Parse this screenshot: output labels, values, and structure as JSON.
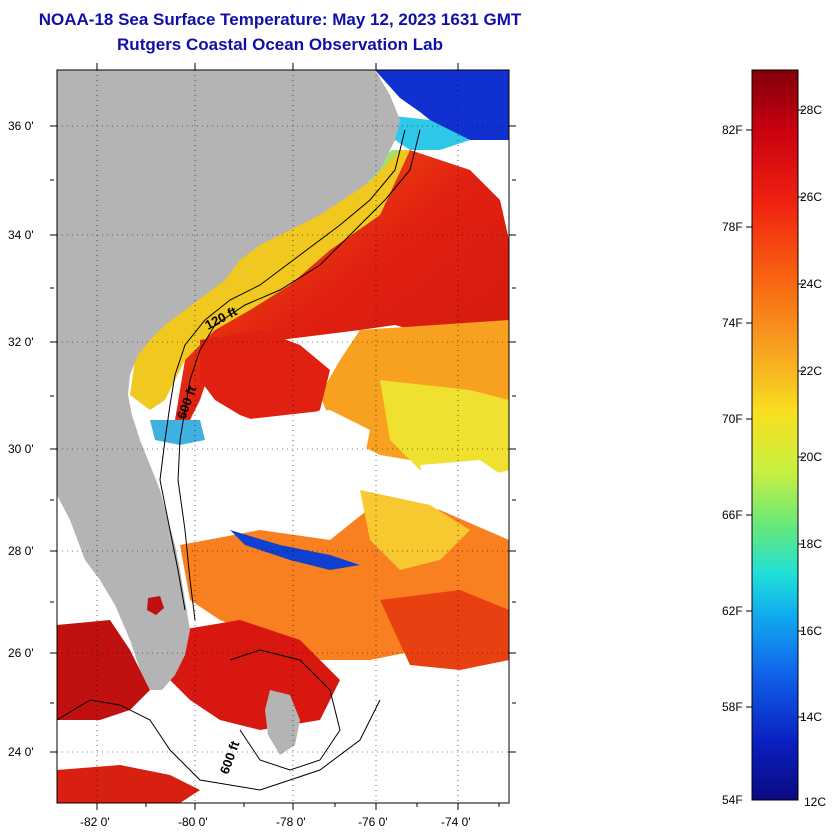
{
  "header": {
    "title": "NOAA-18 Sea Surface Temperature:  May 12, 2023 1631 GMT",
    "subtitle": "Rutgers Coastal Ocean Observation Lab"
  },
  "map": {
    "lat_labels": [
      "36 0'",
      "34 0'",
      "32 0'",
      "30 0'",
      "28 0'",
      "26 0'",
      "24 0'"
    ],
    "lon_labels": [
      "-82 0'",
      "-80 0'",
      "-78 0'",
      "-76 0'",
      "-74 0'"
    ],
    "contour_labels": [
      "120 ft",
      "600 ft",
      "600 ft"
    ],
    "colors": {
      "land": "#b4b4b4",
      "cloud": "#ffffff",
      "warm": "#e02010",
      "hot": "#b01010",
      "orange": "#f08020",
      "yellow": "#f8e020",
      "cool": "#30c0f0",
      "cold": "#1030d0"
    }
  },
  "colorbar": {
    "fahrenheit_labels": [
      "82F",
      "78F",
      "74F",
      "70F",
      "66F",
      "62F",
      "58F",
      "54F"
    ],
    "celsius_labels": [
      "28C",
      "26C",
      "24C",
      "22C",
      "20C",
      "18C",
      "16C",
      "14C",
      "12C"
    ],
    "stops": [
      "#80000a",
      "#c80010",
      "#f02010",
      "#f86010",
      "#f8a020",
      "#f8e020",
      "#c8f040",
      "#60e880",
      "#20e0d8",
      "#10a8f0",
      "#1060e8",
      "#0a20c0",
      "#0a0a80"
    ]
  }
}
